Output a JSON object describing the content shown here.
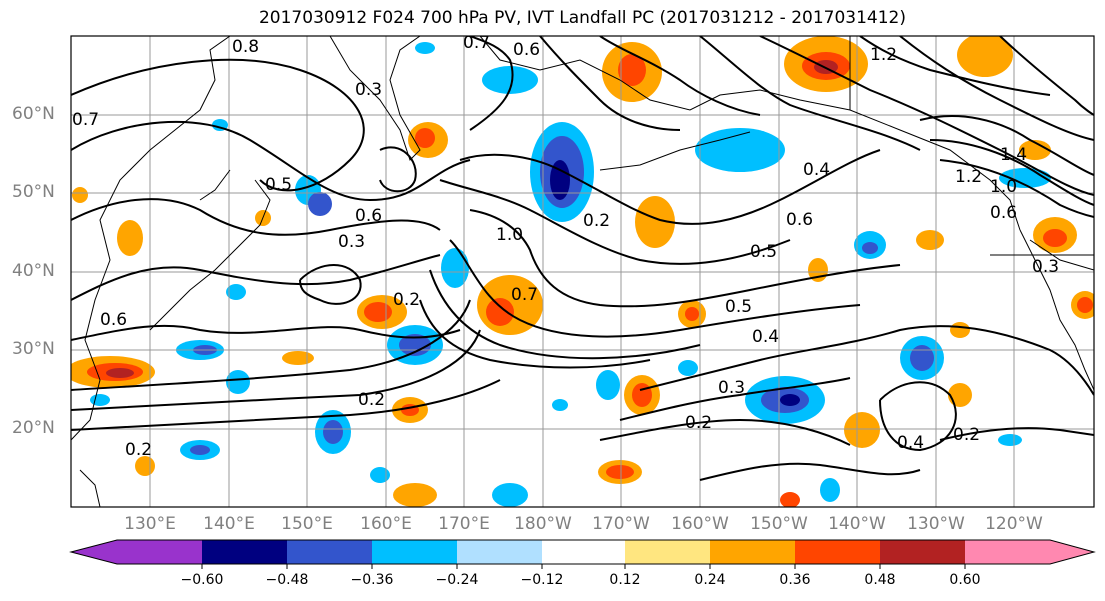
{
  "title": "2017030912 F024 700 hPa PV, IVT Landfall PC (2017031212 - 2017031412)",
  "latitude_labels": [
    "60°N",
    "50°N",
    "40°N",
    "30°N",
    "20°N"
  ],
  "longitude_labels": [
    "130°E",
    "140°E",
    "150°E",
    "160°E",
    "170°E",
    "180°W",
    "170°W",
    "160°W",
    "150°W",
    "140°W",
    "130°W",
    "120°W"
  ],
  "contour_labels": [
    "0.8",
    "0.7",
    "0.6",
    "0.3",
    "0.4",
    "1.0",
    "1.2",
    "1.4",
    "0.5",
    "0.2"
  ],
  "colorbar": {
    "tick_labels": [
      "−0.60",
      "−0.48",
      "−0.36",
      "−0.24",
      "−0.12",
      "0.12",
      "0.24",
      "0.36",
      "0.48",
      "0.60"
    ],
    "colors": [
      "#9933cc",
      "#000080",
      "#3355cc",
      "#00bfff",
      "#b0e0ff",
      "#ffffff",
      "#ffe680",
      "#ffa500",
      "#ff4500",
      "#b22222",
      "#ff88b0"
    ]
  }
}
